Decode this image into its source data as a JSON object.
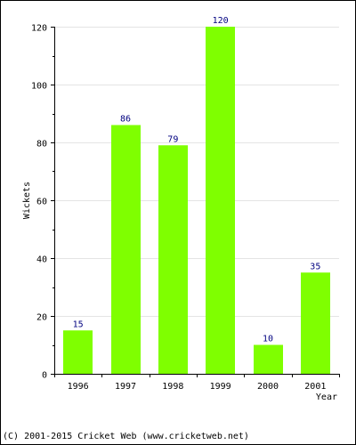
{
  "chart_data": {
    "type": "bar",
    "categories": [
      "1996",
      "1997",
      "1998",
      "1999",
      "2000",
      "2001"
    ],
    "values": [
      15,
      86,
      79,
      120,
      10,
      35
    ],
    "xlabel": "Year",
    "ylabel": "Wickets",
    "ylim": [
      0,
      120
    ],
    "yticks": [
      0,
      20,
      40,
      60,
      80,
      100,
      120
    ],
    "grid": true,
    "bar_color": "#7fff00",
    "label_color": "#000080"
  },
  "footer": {
    "copyright": "(C) 2001-2015 Cricket Web (www.cricketweb.net)"
  }
}
